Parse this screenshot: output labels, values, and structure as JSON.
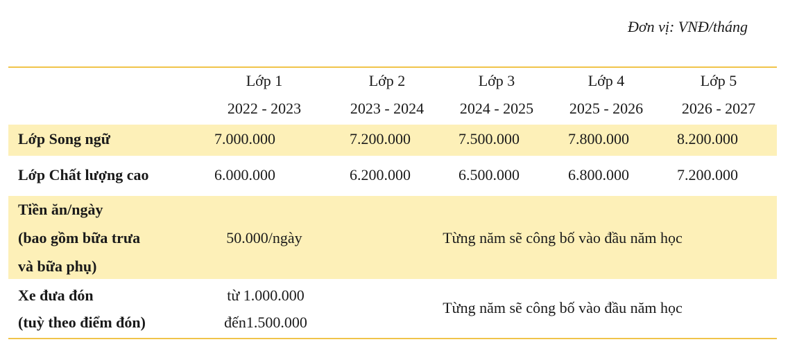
{
  "unit_note": "Đơn vị: VNĐ/tháng",
  "header": {
    "grades": [
      "Lớp 1",
      "Lớp 2",
      "Lớp 3",
      "Lớp 4",
      "Lớp 5"
    ],
    "years": [
      "2022 - 2023",
      "2023 - 2024",
      "2024 - 2025",
      "2025 - 2026",
      "2026 - 2027"
    ]
  },
  "rows": {
    "song_ngu": {
      "label": "Lớp Song ngữ",
      "values": [
        "7.000.000",
        "7.200.000",
        "7.500.000",
        "7.800.000",
        "8.200.000"
      ]
    },
    "clc": {
      "label": "Lớp Chất lượng cao",
      "values": [
        "6.000.000",
        "6.200.000",
        "6.500.000",
        "6.800.000",
        "7.200.000"
      ]
    },
    "tien_an": {
      "label_lines": [
        "Tiền ăn/ngày",
        "(bao gồm bữa trưa",
        "và bữa phụ)"
      ],
      "first_value": "50.000/ngày",
      "note": "Từng năm sẽ công bố vào đầu năm học"
    },
    "xe": {
      "label_lines": [
        "Xe đưa đón",
        "(tuỳ theo điểm đón)"
      ],
      "first_value_lines": [
        "từ 1.000.000",
        "đến1.500.000"
      ],
      "note": "Từng năm sẽ công bố vào đầu năm học"
    }
  },
  "colors": {
    "rule": "#f0c44a",
    "band": "#fdf0b8"
  }
}
